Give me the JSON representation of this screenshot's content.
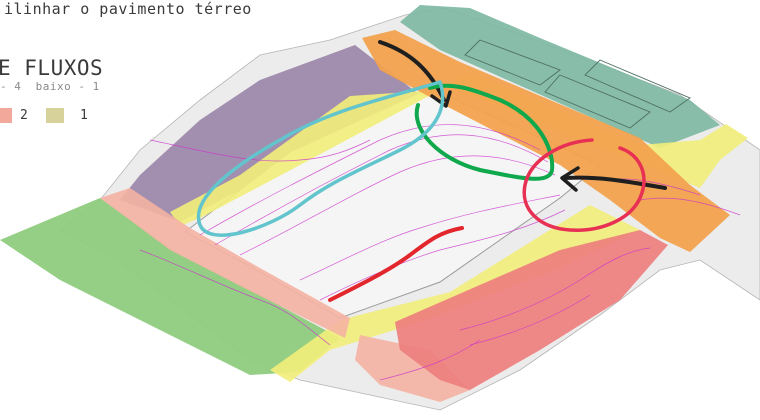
{
  "caption": "ilinhar o pavimento térreo",
  "legend": {
    "title": "E FLUXOS",
    "subtitle": "- 4  baixo - 1",
    "items": [
      {
        "label": "2",
        "color": "#f2a89a"
      },
      {
        "label": "1",
        "color": "#d7d29a"
      }
    ]
  },
  "zone_colors": {
    "north_block": "#7fb9a4",
    "west_block": "#9b86a8",
    "southwest_block": "#8fcc7e",
    "south_block": "#ee7f7e",
    "central_plaza": "#f1f1f1",
    "flow_high": "#f2a24e",
    "flow_medium": "#f4b2a2",
    "flow_low": "#f2ee7a",
    "contours": "#cc33cc"
  },
  "annotation_colors": [
    "#1f1f1f",
    "#10a84c",
    "#e83055",
    "#62c4cc",
    "#e2262c"
  ]
}
